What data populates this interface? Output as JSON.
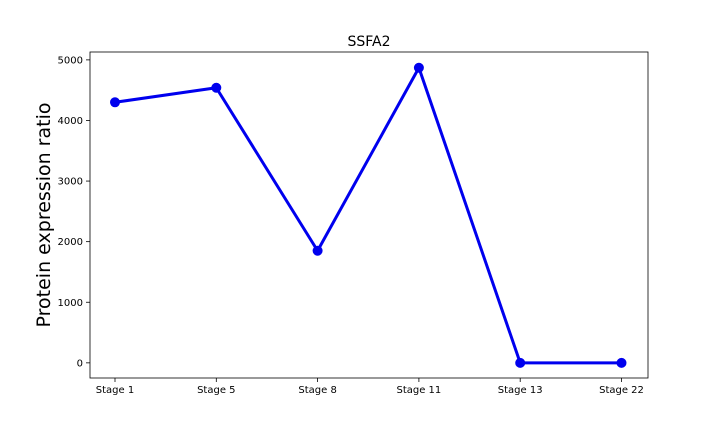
{
  "chart_data": {
    "type": "line",
    "title": "SSFA2",
    "xlabel": "",
    "ylabel": "Protein expression ratio",
    "categories": [
      "Stage 1",
      "Stage 5",
      "Stage 8",
      "Stage 11",
      "Stage 13",
      "Stage 22"
    ],
    "series": [
      {
        "values": [
          4300,
          4540,
          1850,
          4870,
          0,
          0
        ],
        "color": "#0000ee"
      }
    ],
    "ylim": [
      -250,
      5130
    ],
    "yticks": [
      0,
      1000,
      2000,
      3000,
      4000,
      5000
    ],
    "grid": false
  }
}
